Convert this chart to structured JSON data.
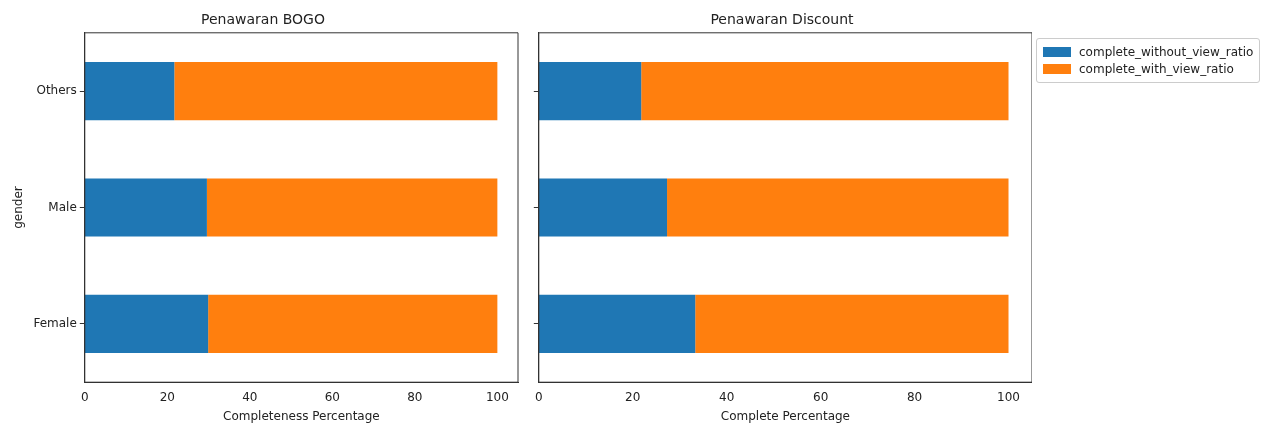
{
  "chart_data": [
    {
      "type": "bar",
      "orientation": "horizontal",
      "stacked": true,
      "title": "Penawaran BOGO",
      "xlabel": "Completeness Percentage",
      "ylabel": "gender",
      "categories": [
        "Others",
        "Male",
        "Female"
      ],
      "xlim": [
        0,
        105
      ],
      "xticks": [
        0,
        20,
        40,
        60,
        80,
        100
      ],
      "grid": false,
      "legend": false,
      "series": [
        {
          "color": "#1f77b4",
          "values": [
            21.7,
            29.6,
            29.9
          ]
        },
        {
          "color": "#ff7f0e",
          "values": [
            78.3,
            70.4,
            70.1
          ]
        }
      ]
    },
    {
      "type": "bar",
      "orientation": "horizontal",
      "stacked": true,
      "title": "Penawaran Discount",
      "xlabel": "Complete Percentage",
      "categories": [
        null,
        null,
        null
      ],
      "xlim": [
        0,
        105
      ],
      "xticks": [
        0,
        20,
        40,
        60,
        80,
        100
      ],
      "grid": false,
      "legend": "right",
      "tick_labels": "x",
      "series": [
        {
          "name": "complete_without_view_ratio",
          "color": "#1f77b4",
          "values": [
            21.8,
            27.3,
            33.3
          ]
        },
        {
          "name": "complete_with_view_ratio",
          "color": "#ff7f0e",
          "values": [
            78.2,
            72.7,
            66.7
          ]
        }
      ]
    }
  ]
}
